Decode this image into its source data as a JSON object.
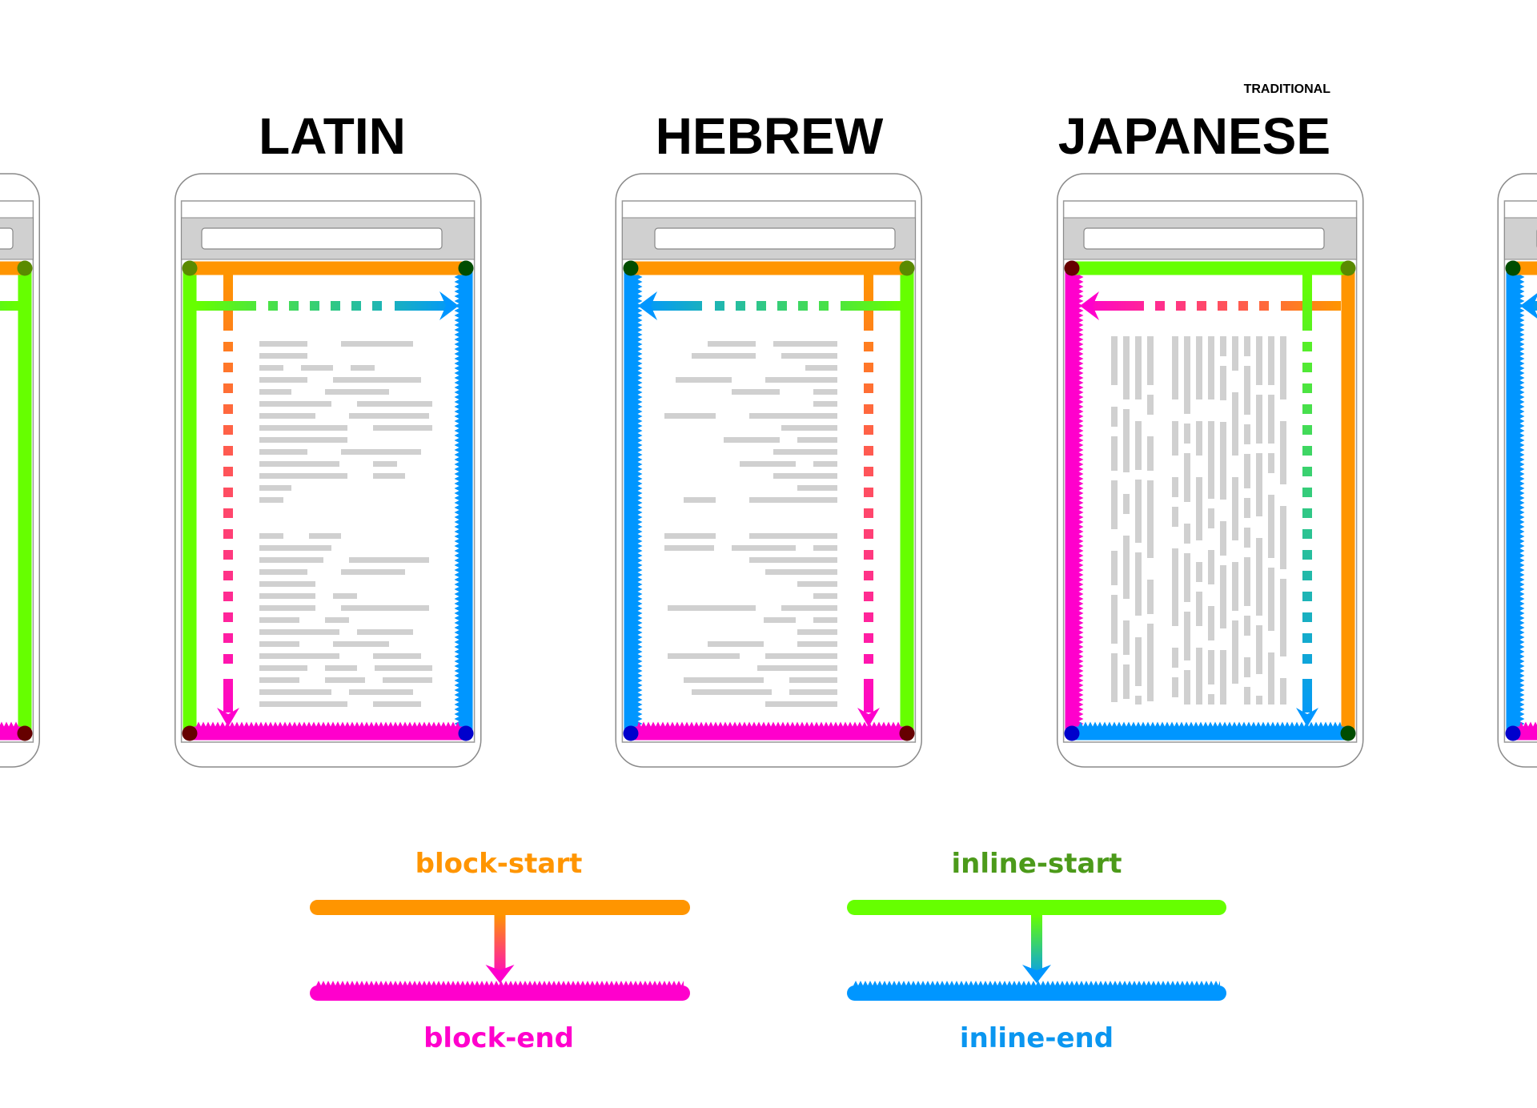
{
  "titles": {
    "latin": "LATIN",
    "hebrew": "HEBREW",
    "japanese": "JAPANESE",
    "japanese_sub": "TRADITIONAL"
  },
  "legend": {
    "block_start": "block-start",
    "block_end": "block-end",
    "inline_start": "inline-start",
    "inline_end": "inline-end"
  },
  "colors": {
    "block_start": "#ff9500",
    "block_end": "#ff00cc",
    "inline_start": "#66ff00",
    "inline_end": "#0096ff",
    "inline_start_label": "#4c9a1a"
  }
}
